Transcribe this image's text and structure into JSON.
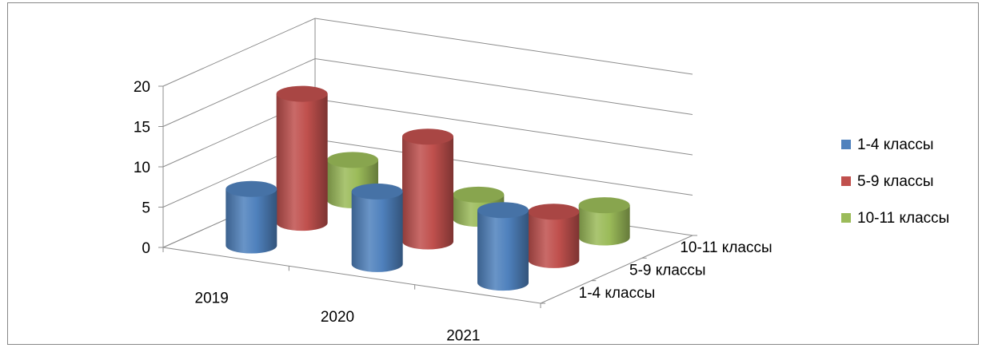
{
  "chart_data": {
    "type": "bar",
    "subtype": "3d-cylinder",
    "title": "",
    "categories": [
      "2019",
      "2020",
      "2021"
    ],
    "series": [
      {
        "name": "1-4 классы",
        "values": [
          7,
          9,
          9
        ],
        "color": "#4F81BD"
      },
      {
        "name": "5-9 классы",
        "values": [
          16,
          13,
          6
        ],
        "color": "#C0504D"
      },
      {
        "name": "10-11 классы",
        "values": [
          5,
          3,
          4
        ],
        "color": "#9BBB59"
      }
    ],
    "y_ticks": [
      "0",
      "5",
      "10",
      "15",
      "20"
    ],
    "ylim": [
      0,
      20
    ],
    "depth_labels": [
      "1-4 классы",
      "5-9 классы",
      "10-11 классы"
    ],
    "grid": true,
    "legend_position": "right"
  }
}
